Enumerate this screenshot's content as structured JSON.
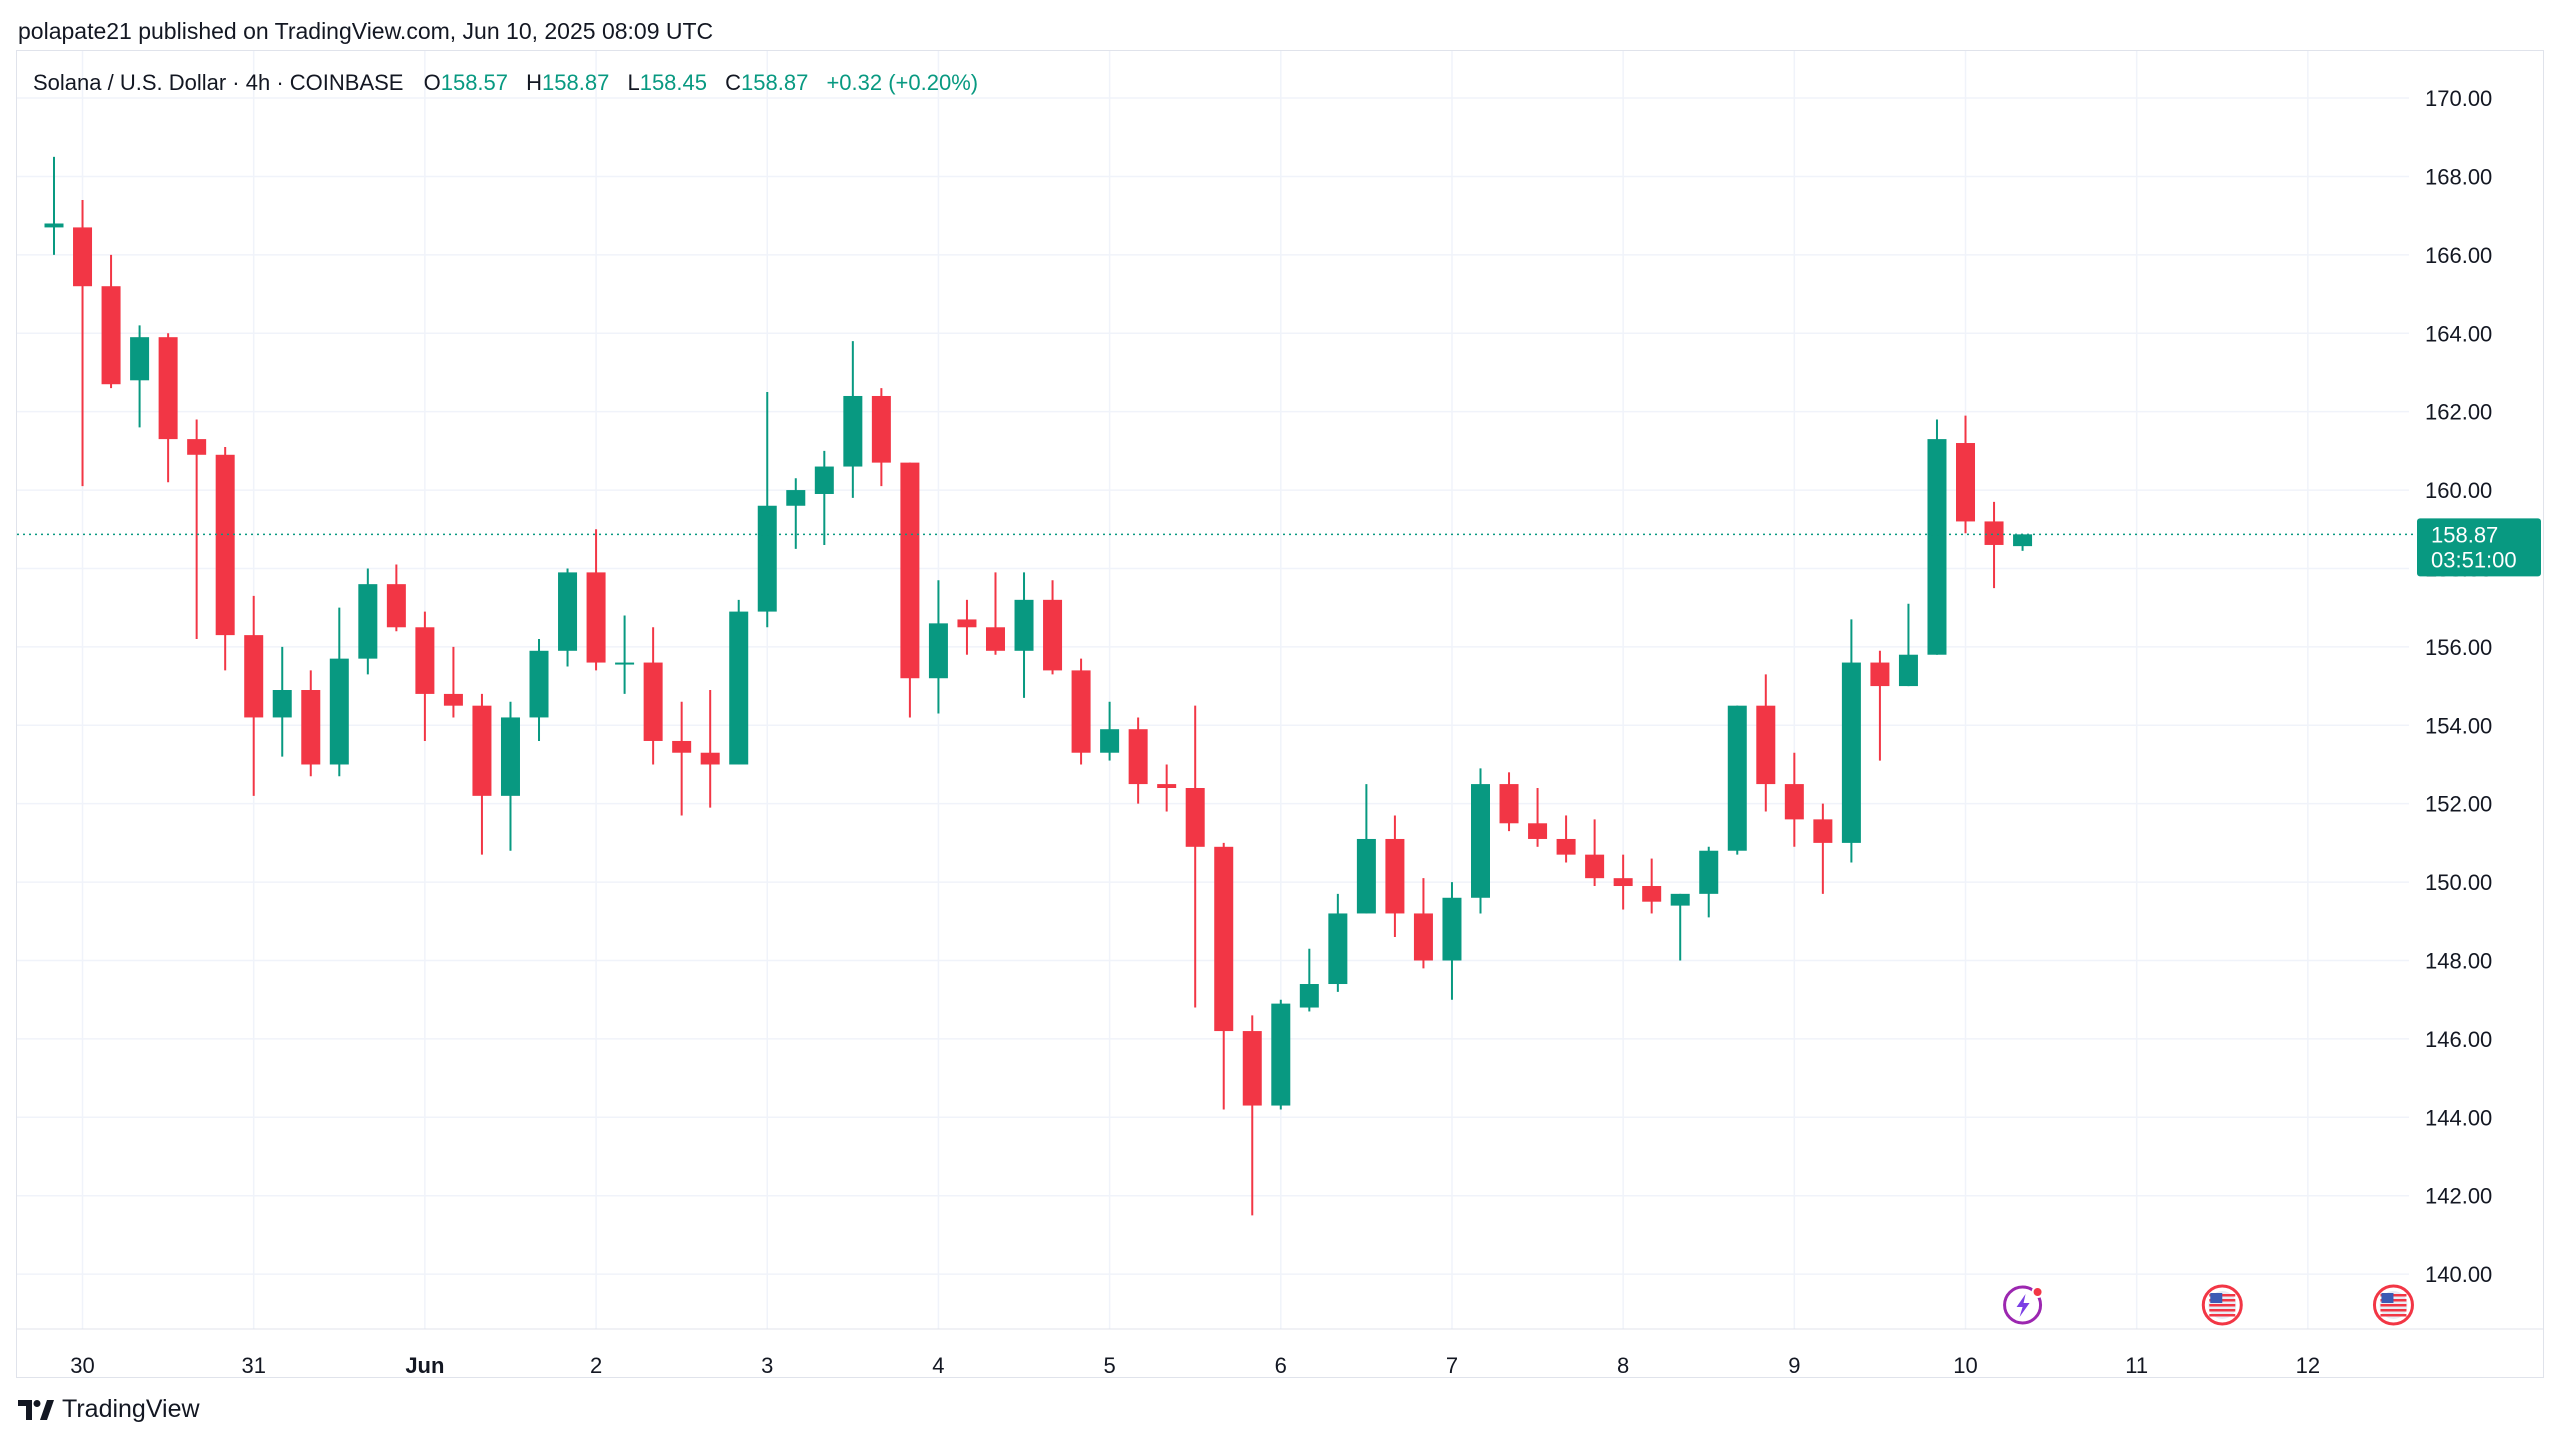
{
  "header": {
    "published_by": "polapate21 published on TradingView.com, Jun 10, 2025 08:09 UTC"
  },
  "legend": {
    "symbol": "Solana / U.S. Dollar · 4h · COINBASE",
    "o_label": "O",
    "o_value": "158.57",
    "h_label": "H",
    "h_value": "158.87",
    "l_label": "L",
    "l_value": "158.45",
    "c_label": "C",
    "c_value": "158.87",
    "change": "+0.32 (+0.20%)"
  },
  "price_tag": {
    "price": "158.87",
    "countdown": "03:51:00"
  },
  "footer": {
    "brand": "TradingView"
  },
  "colors": {
    "up": "#089981",
    "down": "#f23645",
    "grid": "#f0f3fa",
    "text": "#131722",
    "accent": "#089981"
  },
  "chart_data": {
    "type": "candlestick",
    "title": "Solana / U.S. Dollar · 4h · COINBASE",
    "ylim": [
      138.6,
      171.2
    ],
    "y_ticks": [
      "140.00",
      "142.00",
      "144.00",
      "146.00",
      "148.00",
      "150.00",
      "152.00",
      "154.00",
      "156.00",
      "158.00",
      "160.00",
      "162.00",
      "164.00",
      "166.00",
      "168.00",
      "170.00"
    ],
    "x_ticks": [
      {
        "label": "30",
        "t": 1,
        "bold": false
      },
      {
        "label": "31",
        "t": 7,
        "bold": false
      },
      {
        "label": "Jun",
        "t": 13,
        "bold": true
      },
      {
        "label": "2",
        "t": 19,
        "bold": false
      },
      {
        "label": "3",
        "t": 25,
        "bold": false
      },
      {
        "label": "4",
        "t": 31,
        "bold": false
      },
      {
        "label": "5",
        "t": 37,
        "bold": false
      },
      {
        "label": "6",
        "t": 43,
        "bold": false
      },
      {
        "label": "7",
        "t": 49,
        "bold": false
      },
      {
        "label": "8",
        "t": 55,
        "bold": false
      },
      {
        "label": "9",
        "t": 61,
        "bold": false
      },
      {
        "label": "10",
        "t": 67,
        "bold": false
      },
      {
        "label": "11",
        "t": 73,
        "bold": false
      },
      {
        "label": "12",
        "t": 79,
        "bold": false
      }
    ],
    "last_price": 158.87,
    "event_markers": [
      {
        "name": "spark-event-icon",
        "t": 69
      },
      {
        "name": "us-flag-event-icon",
        "t": 76
      },
      {
        "name": "us-flag-event-icon",
        "t": 82
      }
    ],
    "candles": [
      {
        "o": 166.7,
        "h": 168.5,
        "l": 166.0,
        "c": 166.8
      },
      {
        "o": 166.7,
        "h": 167.4,
        "l": 160.1,
        "c": 165.2
      },
      {
        "o": 165.2,
        "h": 166.0,
        "l": 162.6,
        "c": 162.7
      },
      {
        "o": 162.8,
        "h": 164.2,
        "l": 161.6,
        "c": 163.9
      },
      {
        "o": 163.9,
        "h": 164.0,
        "l": 160.2,
        "c": 161.3
      },
      {
        "o": 161.3,
        "h": 161.8,
        "l": 156.2,
        "c": 160.9
      },
      {
        "o": 160.9,
        "h": 161.1,
        "l": 155.4,
        "c": 156.3
      },
      {
        "o": 156.3,
        "h": 157.3,
        "l": 152.2,
        "c": 154.2
      },
      {
        "o": 154.2,
        "h": 156.0,
        "l": 153.2,
        "c": 154.9
      },
      {
        "o": 154.9,
        "h": 155.4,
        "l": 152.7,
        "c": 153.0
      },
      {
        "o": 153.0,
        "h": 157.0,
        "l": 152.7,
        "c": 155.7
      },
      {
        "o": 155.7,
        "h": 158.0,
        "l": 155.3,
        "c": 157.6
      },
      {
        "o": 157.6,
        "h": 158.1,
        "l": 156.4,
        "c": 156.5
      },
      {
        "o": 156.5,
        "h": 156.9,
        "l": 153.6,
        "c": 154.8
      },
      {
        "o": 154.8,
        "h": 156.0,
        "l": 154.2,
        "c": 154.5
      },
      {
        "o": 154.5,
        "h": 154.8,
        "l": 150.7,
        "c": 152.2
      },
      {
        "o": 152.2,
        "h": 154.6,
        "l": 150.8,
        "c": 154.2
      },
      {
        "o": 154.2,
        "h": 156.2,
        "l": 153.6,
        "c": 155.9
      },
      {
        "o": 155.9,
        "h": 158.0,
        "l": 155.5,
        "c": 157.9
      },
      {
        "o": 157.9,
        "h": 159.0,
        "l": 155.4,
        "c": 155.6
      },
      {
        "o": 155.6,
        "h": 156.8,
        "l": 154.8,
        "c": 155.6
      },
      {
        "o": 155.6,
        "h": 156.5,
        "l": 153.0,
        "c": 153.6
      },
      {
        "o": 153.6,
        "h": 154.6,
        "l": 151.7,
        "c": 153.3
      },
      {
        "o": 153.3,
        "h": 154.9,
        "l": 151.9,
        "c": 153.0
      },
      {
        "o": 153.0,
        "h": 157.2,
        "l": 153.0,
        "c": 156.9
      },
      {
        "o": 156.9,
        "h": 162.5,
        "l": 156.5,
        "c": 159.6
      },
      {
        "o": 159.6,
        "h": 160.3,
        "l": 158.5,
        "c": 160.0
      },
      {
        "o": 159.9,
        "h": 161.0,
        "l": 158.6,
        "c": 160.6
      },
      {
        "o": 160.6,
        "h": 163.8,
        "l": 159.8,
        "c": 162.4
      },
      {
        "o": 162.4,
        "h": 162.6,
        "l": 160.1,
        "c": 160.7
      },
      {
        "o": 160.7,
        "h": 160.7,
        "l": 154.2,
        "c": 155.2
      },
      {
        "o": 155.2,
        "h": 157.7,
        "l": 154.3,
        "c": 156.6
      },
      {
        "o": 156.7,
        "h": 157.2,
        "l": 155.8,
        "c": 156.5
      },
      {
        "o": 156.5,
        "h": 157.9,
        "l": 155.8,
        "c": 155.9
      },
      {
        "o": 155.9,
        "h": 157.9,
        "l": 154.7,
        "c": 157.2
      },
      {
        "o": 157.2,
        "h": 157.7,
        "l": 155.3,
        "c": 155.4
      },
      {
        "o": 155.4,
        "h": 155.7,
        "l": 153.0,
        "c": 153.3
      },
      {
        "o": 153.3,
        "h": 154.6,
        "l": 153.1,
        "c": 153.9
      },
      {
        "o": 153.9,
        "h": 154.2,
        "l": 152.0,
        "c": 152.5
      },
      {
        "o": 152.5,
        "h": 153.0,
        "l": 151.8,
        "c": 152.4
      },
      {
        "o": 152.4,
        "h": 154.5,
        "l": 146.8,
        "c": 150.9
      },
      {
        "o": 150.9,
        "h": 151.0,
        "l": 144.2,
        "c": 146.2
      },
      {
        "o": 146.2,
        "h": 146.6,
        "l": 141.5,
        "c": 144.3
      },
      {
        "o": 144.3,
        "h": 147.0,
        "l": 144.2,
        "c": 146.9
      },
      {
        "o": 146.8,
        "h": 148.3,
        "l": 146.7,
        "c": 147.4
      },
      {
        "o": 147.4,
        "h": 149.7,
        "l": 147.2,
        "c": 149.2
      },
      {
        "o": 149.2,
        "h": 152.5,
        "l": 149.2,
        "c": 151.1
      },
      {
        "o": 151.1,
        "h": 151.7,
        "l": 148.6,
        "c": 149.2
      },
      {
        "o": 149.2,
        "h": 150.1,
        "l": 147.8,
        "c": 148.0
      },
      {
        "o": 148.0,
        "h": 150.0,
        "l": 147.0,
        "c": 149.6
      },
      {
        "o": 149.6,
        "h": 152.9,
        "l": 149.2,
        "c": 152.5
      },
      {
        "o": 152.5,
        "h": 152.8,
        "l": 151.3,
        "c": 151.5
      },
      {
        "o": 151.5,
        "h": 152.4,
        "l": 150.9,
        "c": 151.1
      },
      {
        "o": 151.1,
        "h": 151.7,
        "l": 150.5,
        "c": 150.7
      },
      {
        "o": 150.7,
        "h": 151.6,
        "l": 149.9,
        "c": 150.1
      },
      {
        "o": 150.1,
        "h": 150.7,
        "l": 149.3,
        "c": 149.9
      },
      {
        "o": 149.9,
        "h": 150.6,
        "l": 149.2,
        "c": 149.5
      },
      {
        "o": 149.4,
        "h": 149.7,
        "l": 148.0,
        "c": 149.7
      },
      {
        "o": 149.7,
        "h": 150.9,
        "l": 149.1,
        "c": 150.8
      },
      {
        "o": 150.8,
        "h": 154.5,
        "l": 150.7,
        "c": 154.5
      },
      {
        "o": 154.5,
        "h": 155.3,
        "l": 151.8,
        "c": 152.5
      },
      {
        "o": 152.5,
        "h": 153.3,
        "l": 150.9,
        "c": 151.6
      },
      {
        "o": 151.6,
        "h": 152.0,
        "l": 149.7,
        "c": 151.0
      },
      {
        "o": 151.0,
        "h": 156.7,
        "l": 150.5,
        "c": 155.6
      },
      {
        "o": 155.6,
        "h": 155.9,
        "l": 153.1,
        "c": 155.0
      },
      {
        "o": 155.0,
        "h": 157.1,
        "l": 155.0,
        "c": 155.8
      },
      {
        "o": 155.8,
        "h": 161.8,
        "l": 155.8,
        "c": 161.3
      },
      {
        "o": 161.2,
        "h": 161.9,
        "l": 158.9,
        "c": 159.2
      },
      {
        "o": 159.2,
        "h": 159.7,
        "l": 157.5,
        "c": 158.6
      },
      {
        "o": 158.57,
        "h": 158.87,
        "l": 158.45,
        "c": 158.87
      }
    ]
  }
}
